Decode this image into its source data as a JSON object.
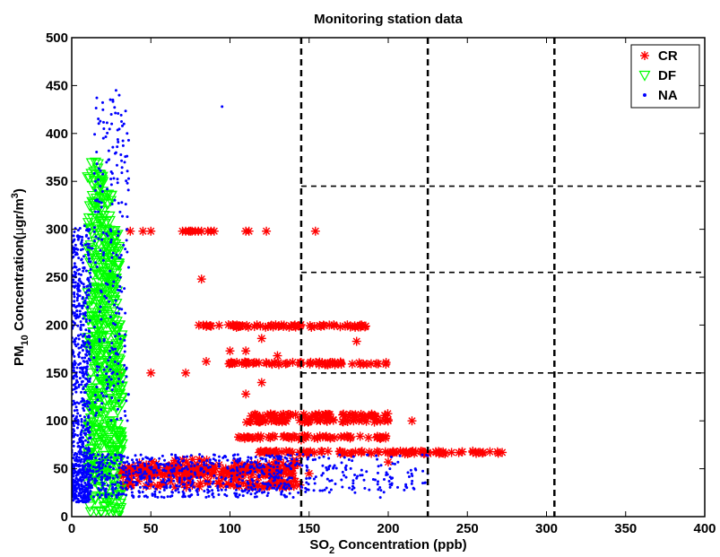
{
  "chart_data": {
    "type": "scatter",
    "title": "Monitoring station data",
    "xlabel": {
      "base": "SO",
      "sub": "2",
      "rest": " Concentration (ppb)"
    },
    "ylabel": {
      "base": "PM",
      "sub": "10",
      "mid": " Concentration(",
      "mu": "μ",
      "unit": "gr/m",
      "sup": "3",
      "end": ")"
    },
    "xlim": [
      0,
      400
    ],
    "ylim": [
      0,
      500
    ],
    "xticks": [
      "0",
      "50",
      "100",
      "150",
      "200",
      "250",
      "300",
      "350",
      "400"
    ],
    "yticks": [
      "0",
      "50",
      "100",
      "150",
      "200",
      "250",
      "300",
      "350",
      "400",
      "450",
      "500"
    ],
    "grid": false,
    "reference_lines": {
      "vertical_x": [
        145,
        225,
        305
      ],
      "horizontal_y": [
        150,
        255,
        345
      ]
    },
    "legend": {
      "position": "top-right",
      "entries": [
        "CR",
        "DF",
        "NA"
      ]
    },
    "series": [
      {
        "name": "CR",
        "marker": "asterisk",
        "color": "#ff0000",
        "clusters": [
          {
            "x": [
              37,
              45,
              50,
              70,
              72,
              74,
              75,
              76,
              78,
              80,
              82,
              86,
              88,
              90,
              110,
              112,
              123,
              154
            ],
            "y": 298
          },
          {
            "x_range": [
              75,
              186
            ],
            "y": 199
          },
          {
            "x_range": [
              95,
              200
            ],
            "y": 160
          },
          {
            "x_range": [
              110,
              200
            ],
            "y": 106
          },
          {
            "x_range": [
              110,
              200
            ],
            "y": 100
          },
          {
            "x_range": [
              105,
              200
            ],
            "y": 83
          },
          {
            "x_range": [
              115,
              272
            ],
            "y": 67
          },
          {
            "x_range": [
              30,
              140
            ],
            "y": 50
          },
          {
            "x_range": [
              30,
              140
            ],
            "y": 45
          },
          {
            "x_range": [
              95,
              140
            ],
            "y": 33
          }
        ],
        "points": [
          [
            82,
            248
          ],
          [
            72,
            150
          ],
          [
            50,
            150
          ],
          [
            30,
            150
          ],
          [
            85,
            162
          ],
          [
            110,
            173
          ],
          [
            120,
            186
          ],
          [
            180,
            183
          ],
          [
            120,
            140
          ],
          [
            110,
            128
          ],
          [
            130,
            168
          ],
          [
            100,
            173
          ],
          [
            200,
            57
          ],
          [
            215,
            100
          ],
          [
            145,
            80
          ],
          [
            225,
            67
          ],
          [
            240,
            67
          ],
          [
            260,
            67
          ],
          [
            272,
            67
          ],
          [
            150,
            45
          ],
          [
            140,
            40
          ]
        ]
      },
      {
        "name": "DF",
        "marker": "triangle-down",
        "color": "#00ff00",
        "region": {
          "x_range": [
            10,
            32
          ],
          "y_range": [
            0,
            370
          ]
        },
        "points": [
          [
            15,
            370
          ],
          [
            14,
            360
          ],
          [
            16,
            340
          ],
          [
            18,
            320
          ],
          [
            25,
            335
          ],
          [
            12,
            300
          ],
          [
            22,
            300
          ],
          [
            28,
            280
          ],
          [
            20,
            260
          ],
          [
            14,
            240
          ],
          [
            26,
            240
          ],
          [
            10,
            220
          ],
          [
            20,
            200
          ],
          [
            30,
            200
          ],
          [
            15,
            180
          ],
          [
            25,
            170
          ],
          [
            12,
            150
          ],
          [
            22,
            140
          ],
          [
            30,
            120
          ],
          [
            18,
            110
          ],
          [
            26,
            100
          ],
          [
            14,
            80
          ],
          [
            24,
            70
          ],
          [
            10,
            50
          ],
          [
            20,
            40
          ],
          [
            28,
            30
          ],
          [
            15,
            20
          ],
          [
            25,
            10
          ],
          [
            12,
            5
          ],
          [
            20,
            2
          ],
          [
            30,
            5
          ]
        ]
      },
      {
        "name": "NA",
        "marker": "point",
        "color": "#0000ff",
        "region": {
          "x_range": [
            0,
            270
          ],
          "y_range": [
            18,
            445
          ]
        },
        "points": [
          [
            28,
            445
          ],
          [
            30,
            440
          ],
          [
            26,
            435
          ],
          [
            25,
            420
          ],
          [
            33,
            410
          ],
          [
            20,
            395
          ],
          [
            28,
            380
          ],
          [
            35,
            400
          ],
          [
            22,
            370
          ],
          [
            18,
            345
          ],
          [
            25,
            360
          ],
          [
            15,
            330
          ],
          [
            10,
            300
          ],
          [
            13,
            280
          ],
          [
            8,
            260
          ],
          [
            12,
            240
          ],
          [
            5,
            220
          ],
          [
            6,
            200
          ],
          [
            4,
            180
          ],
          [
            10,
            160
          ],
          [
            3,
            140
          ],
          [
            6,
            120
          ],
          [
            2,
            100
          ],
          [
            5,
            80
          ],
          [
            8,
            60
          ],
          [
            3,
            40
          ],
          [
            1,
            30
          ],
          [
            6,
            20
          ],
          [
            95,
            428
          ],
          [
            188,
            28
          ],
          [
            195,
            20
          ],
          [
            225,
            45
          ],
          [
            60,
            30
          ],
          [
            150,
            40
          ],
          [
            180,
            40
          ]
        ]
      }
    ]
  }
}
